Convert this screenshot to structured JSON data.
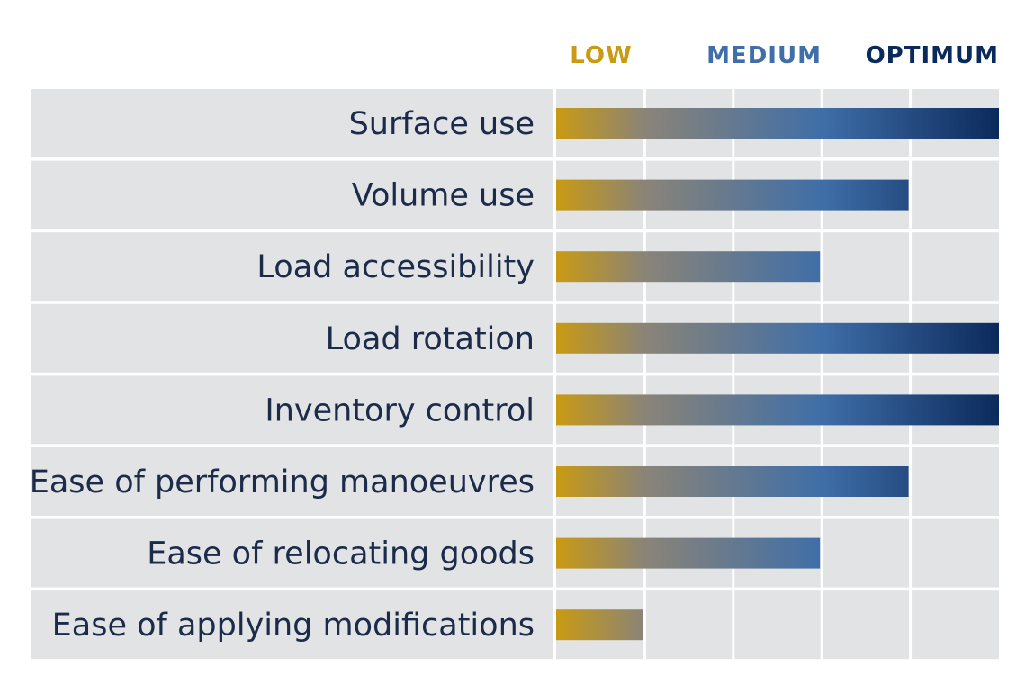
{
  "colors": {
    "low": "#c99a12",
    "medium": "#3f6ea8",
    "optimum": "#0b2a5c",
    "row_bg": "#e2e3e4",
    "label_text": "#1c2b4a"
  },
  "chart_data": {
    "type": "bar",
    "orientation": "horizontal",
    "title": "",
    "xlabel": "",
    "ylabel": "",
    "scale_labels": [
      "LOW",
      "MEDIUM",
      "OPTIMUM"
    ],
    "xlim": [
      0,
      5
    ],
    "grid": true,
    "categories": [
      "Surface use",
      "Volume use",
      "Load accessibility",
      "Load rotation",
      "Inventory control",
      "Ease of performing manoeuvres",
      "Ease of relocating goods",
      "Ease of applying modifications"
    ],
    "values": [
      5,
      4,
      3,
      5,
      5,
      4,
      3,
      1
    ]
  }
}
